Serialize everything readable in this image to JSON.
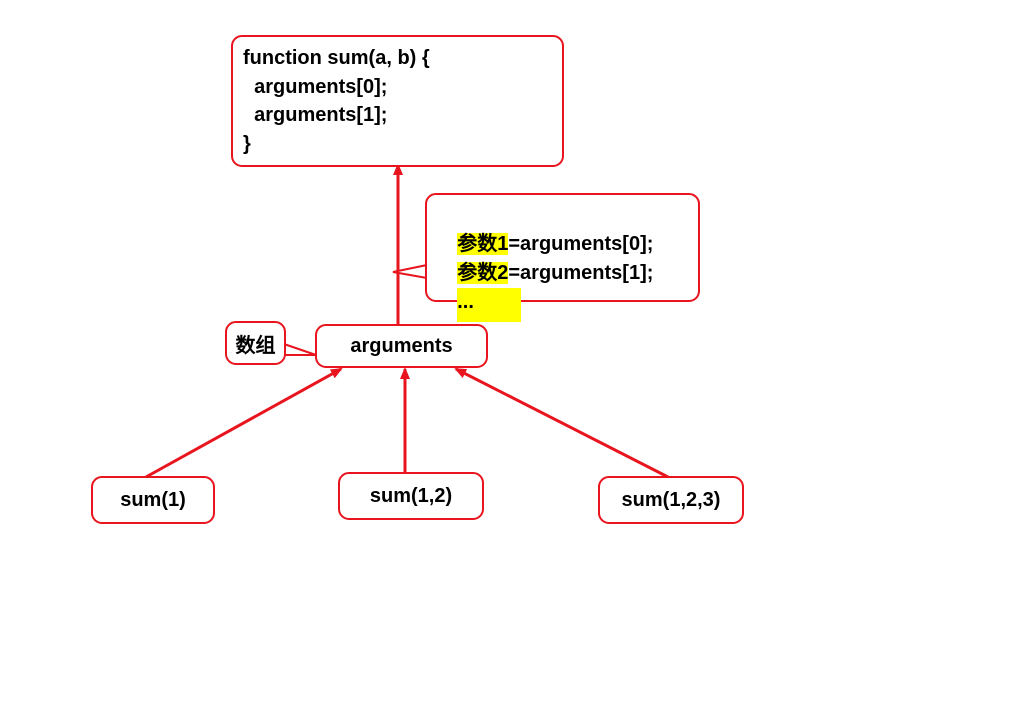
{
  "function_box": {
    "lines": [
      "function sum(a, b) {",
      "  arguments[0];",
      "  arguments[1];",
      "}"
    ]
  },
  "callout_params": {
    "rows": [
      {
        "prefix": "参数1",
        "rest": "=arguments[0];"
      },
      {
        "prefix": "参数2",
        "rest": "=arguments[1];"
      },
      {
        "prefix": "...",
        "rest": ""
      }
    ]
  },
  "callout_array": {
    "label": "数组"
  },
  "arguments_node": {
    "label": "arguments"
  },
  "calls": [
    "sum(1)",
    "sum(1,2)",
    "sum(1,2,3)"
  ],
  "colors": {
    "stroke": "#e8141e",
    "highlight": "#ffff00"
  }
}
